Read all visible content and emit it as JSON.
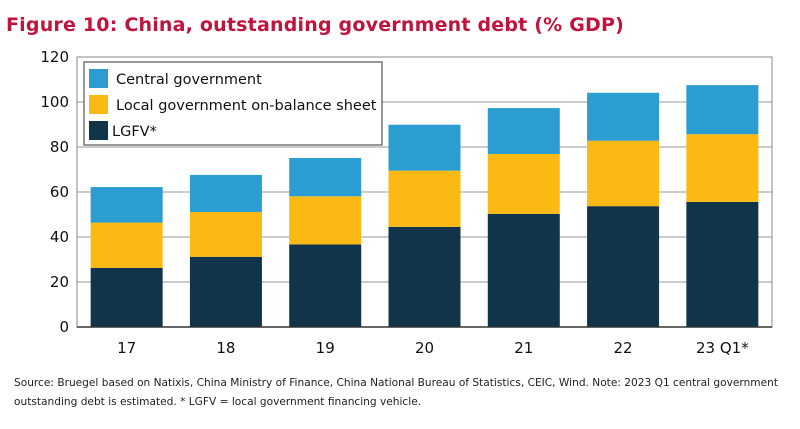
{
  "chart_data": {
    "type": "bar",
    "stacked": true,
    "title": "Figure 10: China, outstanding government debt (% GDP)",
    "categories": [
      "17",
      "18",
      "19",
      "20",
      "21",
      "22",
      "23 Q1*"
    ],
    "series": [
      {
        "name": "LGFV*",
        "color": "#12344a",
        "values": [
          26.3,
          31.2,
          36.7,
          44.5,
          50.3,
          53.7,
          55.6
        ]
      },
      {
        "name": "Local government on-balance sheet",
        "color": "#fbb913",
        "values": [
          20.1,
          19.9,
          21.4,
          25.0,
          26.6,
          29.1,
          30.1
        ]
      },
      {
        "name": "Central government",
        "color": "#2b9dd0",
        "values": [
          15.8,
          16.5,
          17.0,
          20.4,
          20.4,
          21.3,
          21.8
        ]
      }
    ],
    "legend_order": [
      "Central government",
      "Local government on-balance sheet",
      "LGFV*"
    ],
    "ylim": [
      0,
      120
    ],
    "yticks": [
      0,
      20,
      40,
      60,
      80,
      100,
      120
    ],
    "grid": true,
    "legend_position": "top-left",
    "xlabel": "",
    "ylabel": ""
  },
  "note": "Source: Bruegel based on Natixis, China Ministry of Finance, China National Bureau of Statistics, CEIC, Wind. Note: 2023 Q1 central government outstanding debt is estimated. * LGFV = local government financing vehicle."
}
